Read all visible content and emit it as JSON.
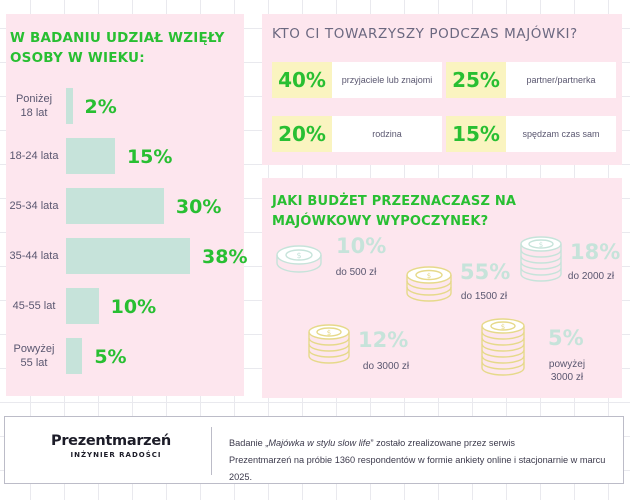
{
  "age_section": {
    "title": "W BADANIU UDZIAŁ WZIĘŁY OSOBY W WIEKU:"
  },
  "who_section": {
    "title": "KTO CI TOWARZYSZY PODCZAS MAJÓWKI?",
    "items": [
      {
        "value": "40%",
        "label": "przyjaciele lub znajomi"
      },
      {
        "value": "25%",
        "label": "partner/partnerka"
      },
      {
        "value": "20%",
        "label": "rodzina"
      },
      {
        "value": "15%",
        "label": "spędzam czas sam"
      }
    ]
  },
  "budget_section": {
    "title": "JAKI BUDŻET PRZEZNACZASZ NA MAJÓWKOWY WYPOCZYNEK?",
    "items": [
      {
        "value": "10%",
        "label": "do 500 zł",
        "coin_color": "#c6e3da"
      },
      {
        "value": "55%",
        "label": "do 1500 zł",
        "coin_color": "#faf4c0"
      },
      {
        "value": "18%",
        "label": "do 2000 zł",
        "coin_color": "#c6e3da"
      },
      {
        "value": "12%",
        "label": "do 3000 zł",
        "coin_color": "#faf4c0"
      },
      {
        "value": "5%",
        "label": "powyżej 3000 zł",
        "coin_color": "#faf4c0"
      }
    ],
    "coin_icon": "coin-stack-icon"
  },
  "chart_data": [
    {
      "type": "bar",
      "orientation": "horizontal",
      "title": "W BADANIU UDZIAŁ WZIĘŁY OSOBY W WIEKU:",
      "categories": [
        "Poniżej 18 lat",
        "18-24 lata",
        "25-34 lata",
        "35-44 lata",
        "45-55 lat",
        "Powyżej 55 lat"
      ],
      "category_lines": [
        [
          "Poniżej",
          "18 lat"
        ],
        [
          "18-24 lata"
        ],
        [
          "25-34 lata"
        ],
        [
          "35-44 lata"
        ],
        [
          "45-55 lat"
        ],
        [
          "Powyżej",
          "55 lat"
        ]
      ],
      "values": [
        2,
        15,
        30,
        38,
        10,
        5
      ],
      "value_labels": [
        "2%",
        "15%",
        "30%",
        "38%",
        "10%",
        "5%"
      ],
      "xlim": [
        0,
        38
      ],
      "bar_color": "#c6e3da",
      "label_color": "#28bf32",
      "grid": false
    }
  ],
  "footer": {
    "logo_name": "Prezentmarzeń",
    "logo_tagline": "INŻYNIER RADOŚCI",
    "line1_prefix": "Badanie „",
    "line1_title": "Majówka w stylu slow life",
    "line1_suffix": "” zostało zrealizowane przez serwis",
    "line2": "Prezentmarzeń na próbie 1360 respondentów w formie ankiety online i stacjonarnie w marcu 2025."
  }
}
